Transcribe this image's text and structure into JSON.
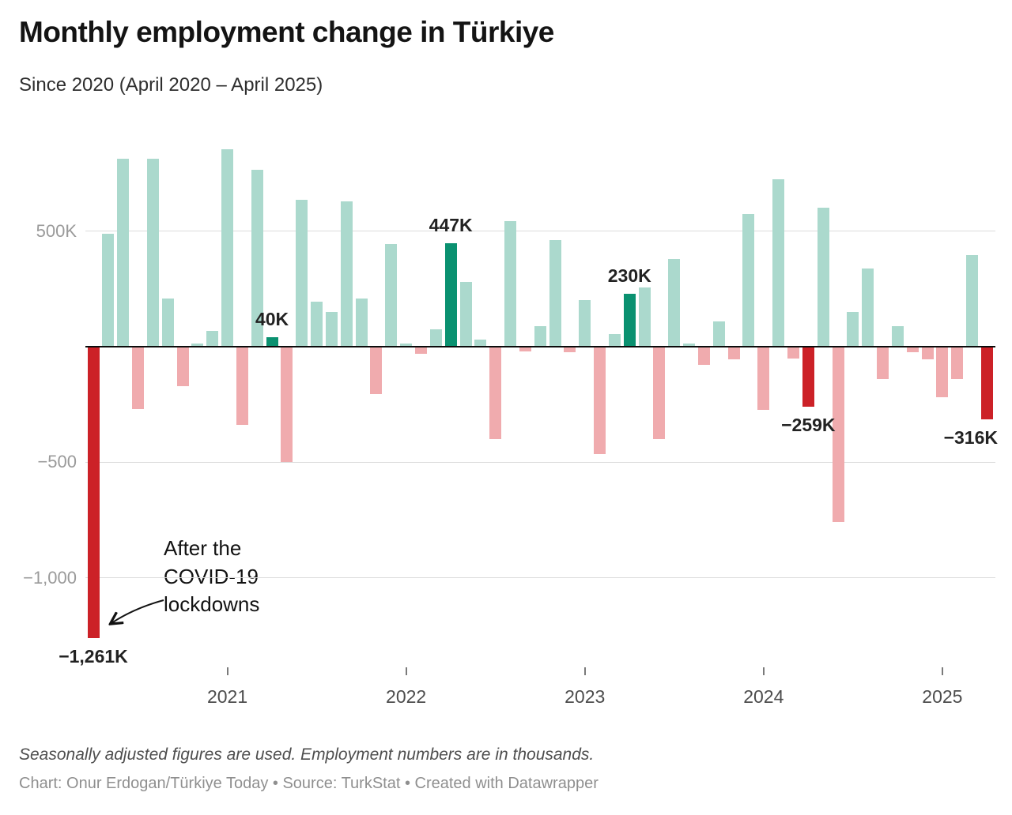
{
  "chart_data": {
    "type": "bar",
    "title": "Monthly employment change in Türkiye",
    "subtitle": "Since 2020 (April 2020 – April 2025)",
    "unit": "thousands",
    "ylim": [
      -1300,
      900
    ],
    "grid": true,
    "months": [
      "2020-04",
      "2020-05",
      "2020-06",
      "2020-07",
      "2020-08",
      "2020-09",
      "2020-10",
      "2020-11",
      "2020-12",
      "2021-01",
      "2021-02",
      "2021-03",
      "2021-04",
      "2021-05",
      "2021-06",
      "2021-07",
      "2021-08",
      "2021-09",
      "2021-10",
      "2021-11",
      "2021-12",
      "2022-01",
      "2022-02",
      "2022-03",
      "2022-04",
      "2022-05",
      "2022-06",
      "2022-07",
      "2022-08",
      "2022-09",
      "2022-10",
      "2022-11",
      "2022-12",
      "2023-01",
      "2023-02",
      "2023-03",
      "2023-04",
      "2023-05",
      "2023-06",
      "2023-07",
      "2023-08",
      "2023-09",
      "2023-10",
      "2023-11",
      "2023-12",
      "2024-01",
      "2024-02",
      "2024-03",
      "2024-04",
      "2024-05",
      "2024-06",
      "2024-07",
      "2024-08",
      "2024-09",
      "2024-10",
      "2024-11",
      "2024-12",
      "2025-01",
      "2025-02",
      "2025-03",
      "2025-04"
    ],
    "values": [
      -1261,
      490,
      815,
      -270,
      815,
      210,
      -170,
      12,
      70,
      855,
      -340,
      765,
      40,
      -500,
      635,
      195,
      150,
      630,
      210,
      -205,
      445,
      12,
      -30,
      75,
      447,
      280,
      30,
      -400,
      545,
      -20,
      90,
      460,
      -25,
      200,
      -465,
      55,
      230,
      255,
      -400,
      380,
      12,
      -80,
      110,
      -55,
      575,
      -275,
      725,
      -50,
      -259,
      600,
      -760,
      150,
      340,
      -140,
      90,
      -25,
      -55,
      -220,
      -140,
      395,
      -316
    ],
    "highlight_indices": [
      0,
      12,
      24,
      36,
      48,
      60
    ],
    "y_ticks": [
      {
        "label": "500K",
        "value": 500
      },
      {
        "label": "−500",
        "value": -500
      },
      {
        "label": "−1,000",
        "value": -1000
      }
    ],
    "x_ticks": [
      {
        "label": "2021",
        "month_index": 9
      },
      {
        "label": "2022",
        "month_index": 21
      },
      {
        "label": "2023",
        "month_index": 33
      },
      {
        "label": "2024",
        "month_index": 45
      },
      {
        "label": "2025",
        "month_index": 57
      }
    ],
    "value_labels": [
      {
        "index": 0,
        "text": "−1,261K",
        "side": "below",
        "align": "center"
      },
      {
        "index": 12,
        "text": "40K",
        "side": "above",
        "align": "center"
      },
      {
        "index": 24,
        "text": "447K",
        "side": "above",
        "align": "center"
      },
      {
        "index": 36,
        "text": "230K",
        "side": "above",
        "align": "center"
      },
      {
        "index": 48,
        "text": "−259K",
        "side": "below",
        "align": "center"
      },
      {
        "index": 60,
        "text": "−316K",
        "side": "below",
        "align": "right"
      }
    ],
    "note": {
      "lines": [
        "After the",
        "COVID-19",
        "lockdowns"
      ]
    },
    "colors": {
      "positive": "#abd9cd",
      "negative": "#f0abae",
      "highlight_positive": "#0a9170",
      "highlight_negative": "#cc2127",
      "gridline": "#dcdcdc",
      "baseline": "#0b0b0b"
    }
  },
  "footer": {
    "note": "Seasonally adjusted figures are used. Employment numbers are in thousands.",
    "credit": "Chart: Onur Erdogan/Türkiye Today • Source: TurkStat • Created with Datawrapper"
  }
}
